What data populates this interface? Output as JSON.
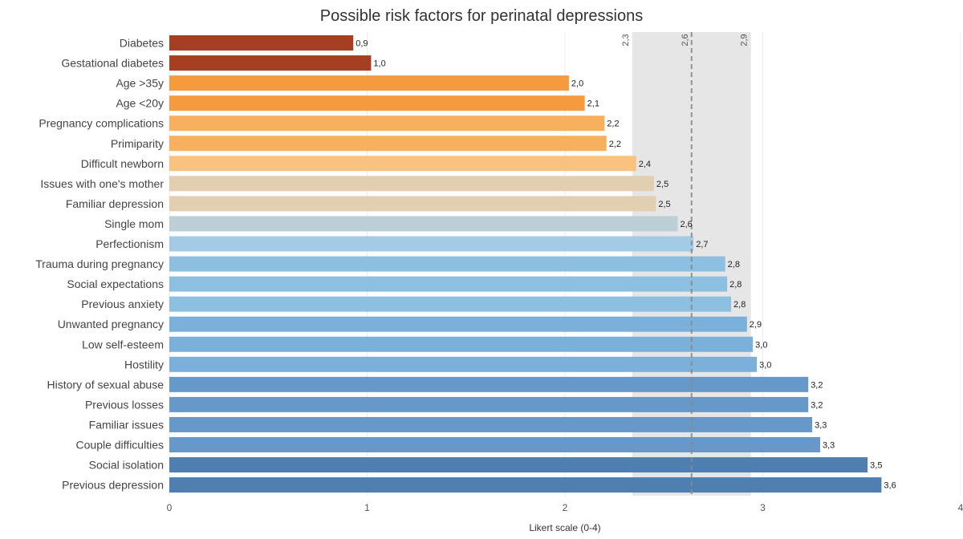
{
  "chart_data": {
    "type": "bar",
    "orientation": "horizontal",
    "title": "Possible risk factors for perinatal depressions",
    "xlabel": "Likert scale (0-4)",
    "ylabel": "",
    "xlim": [
      0,
      4
    ],
    "x_ticks": [
      "0",
      "1",
      "2",
      "3",
      "4"
    ],
    "grid": true,
    "categories": [
      "Diabetes",
      "Gestational diabetes",
      "Age >35y",
      "Age <20y",
      "Pregnancy complications",
      "Primiparity",
      "Difficult newborn",
      "Issues with one's mother",
      "Familiar depression",
      "Single mom",
      "Perfectionism",
      "Trauma during pregnancy",
      "Social expectations",
      "Previous anxiety",
      "Unwanted pregnancy",
      "Low self-esteem",
      "Hostility",
      "History of sexual abuse",
      "Previous losses",
      "Familiar issues",
      "Couple difficulties",
      "Social isolation",
      "Previous depression"
    ],
    "values": [
      0.93,
      1.02,
      2.02,
      2.1,
      2.2,
      2.21,
      2.36,
      2.45,
      2.46,
      2.57,
      2.65,
      2.81,
      2.82,
      2.84,
      2.92,
      2.95,
      2.97,
      3.23,
      3.23,
      3.25,
      3.29,
      3.53,
      3.6
    ],
    "value_labels": [
      "0,9",
      "1,0",
      "2,0",
      "2,1",
      "2,2",
      "2,2",
      "2,4",
      "2,5",
      "2,5",
      "2,6",
      "2,7",
      "2,8",
      "2,8",
      "2,8",
      "2,9",
      "3,0",
      "3,0",
      "3,2",
      "3,2",
      "3,3",
      "3,3",
      "3,5",
      "3,6"
    ],
    "bar_colors": [
      "#a63f22",
      "#a63f22",
      "#f59a3e",
      "#f59a3e",
      "#f8b05e",
      "#f8b05e",
      "#f9c27f",
      "#e2cfb1",
      "#e2cfb1",
      "#bccfd6",
      "#a3cbe6",
      "#8dbfe0",
      "#8dbfe0",
      "#8dbfe0",
      "#7ab0da",
      "#7ab0da",
      "#7ab0da",
      "#6699c9",
      "#6699c9",
      "#6699c9",
      "#6699c9",
      "#4f7fb0",
      "#4f7fb0"
    ],
    "reference_band": {
      "low": 2.34,
      "high": 2.94,
      "low_label": "2,3",
      "high_label": "2,9",
      "color": "#e6e6e6"
    },
    "reference_line": {
      "value": 2.64,
      "label": "2,6",
      "style": "dashed",
      "color": "#8a8a8a"
    }
  }
}
